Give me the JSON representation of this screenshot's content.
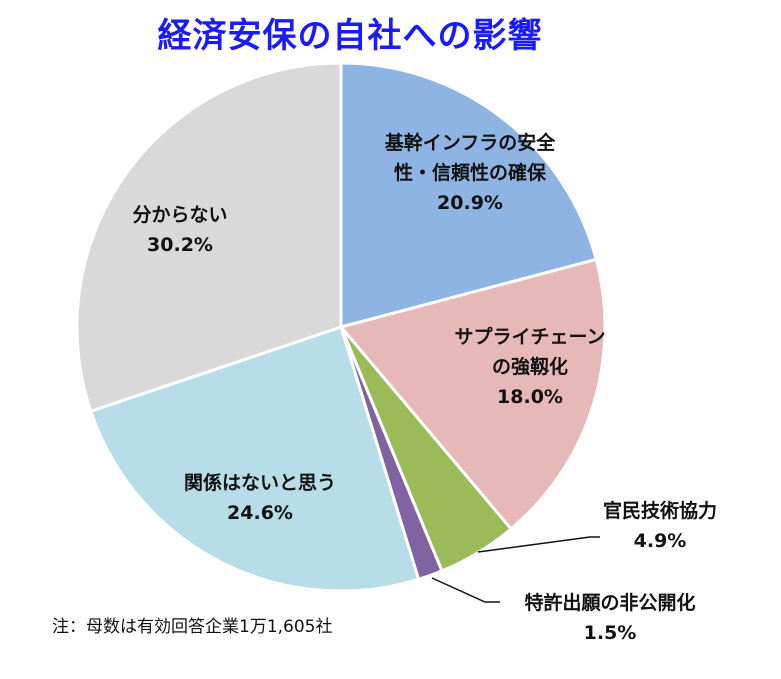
{
  "title": "経済安保の自社への影響",
  "note": "注：母数は有効回答企業1万1,605社",
  "chart_data": {
    "type": "pie",
    "title": "経済安保の自社への影響",
    "start_angle_deg": 0,
    "direction": "clockwise",
    "slices": [
      {
        "label": "基幹インフラの安全性・信頼性の確保",
        "value": 20.9,
        "color": "#8eb4e3"
      },
      {
        "label": "サプライチェーンの強靱化",
        "value": 18.0,
        "color": "#e6b9b8"
      },
      {
        "label": "官民技術協力",
        "value": 4.9,
        "color": "#9bbb59"
      },
      {
        "label": "特許出願の非公開化",
        "value": 1.5,
        "color": "#8064a2"
      },
      {
        "label": "関係はないと思う",
        "value": 24.6,
        "color": "#b7dde8"
      },
      {
        "label": "分からない",
        "value": 30.2,
        "color": "#d9d9d9"
      }
    ]
  },
  "labels": {
    "infra_line1": "基幹インフラの安全",
    "infra_line2": "性・信頼性の確保",
    "infra_pct": "20.9%",
    "supply_line1": "サプライチェーン",
    "supply_line2": "の強靱化",
    "supply_pct": "18.0%",
    "kanmin": "官民技術協力",
    "kanmin_pct": "4.9%",
    "patent": "特許出願の非公開化",
    "patent_pct": "1.5%",
    "kankei": "関係はないと思う",
    "kankei_pct": "24.6%",
    "wakaranai": "分からない",
    "wakaranai_pct": "30.2%"
  }
}
